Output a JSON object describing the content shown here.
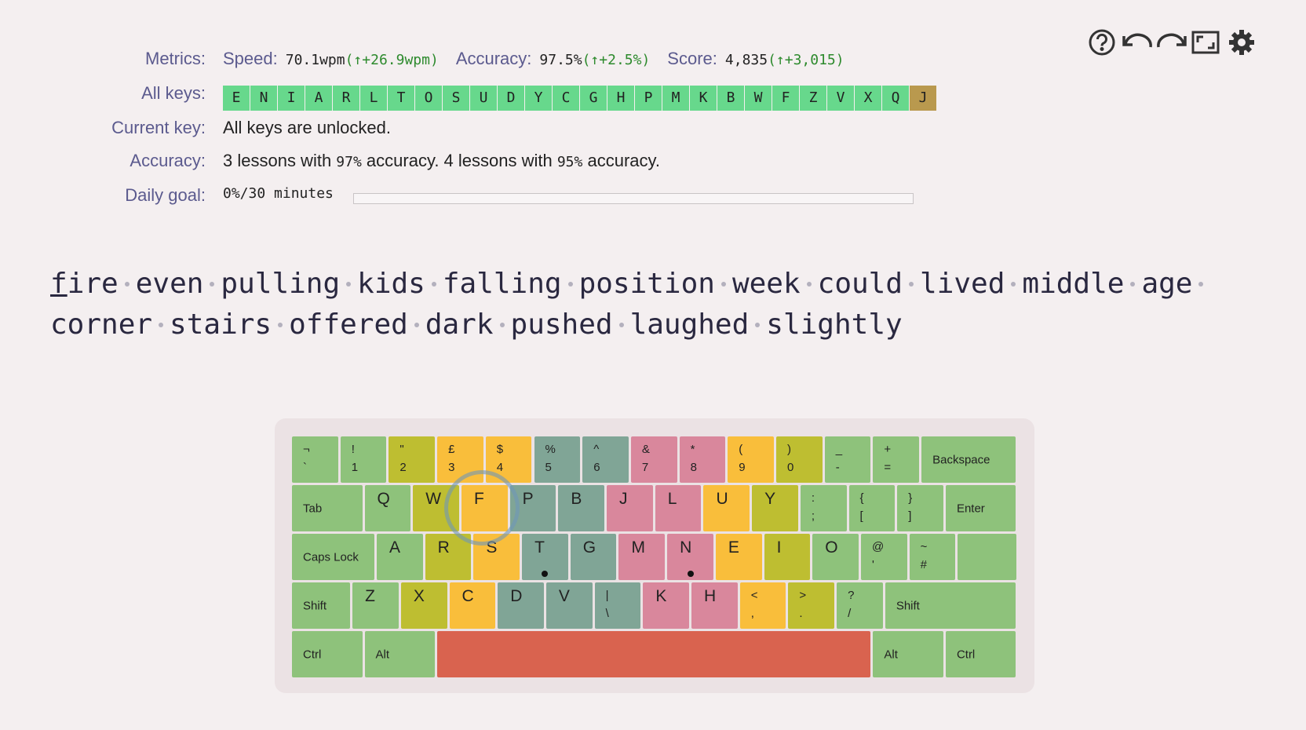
{
  "metrics": {
    "label": "Metrics:",
    "items": [
      {
        "label": "Speed:",
        "value": "70.1wpm",
        "delta": "(↑+26.9wpm)"
      },
      {
        "label": "Accuracy:",
        "value": "97.5%",
        "delta": "(↑+2.5%)"
      },
      {
        "label": "Score:",
        "value": "4,835",
        "delta": "(↑+3,015)"
      }
    ]
  },
  "all_keys": {
    "label": "All keys:",
    "keys": [
      {
        "key": "E",
        "color": "#67d88c"
      },
      {
        "key": "N",
        "color": "#67d88c"
      },
      {
        "key": "I",
        "color": "#67d88c"
      },
      {
        "key": "A",
        "color": "#67d88c"
      },
      {
        "key": "R",
        "color": "#67d88c"
      },
      {
        "key": "L",
        "color": "#67d88c"
      },
      {
        "key": "T",
        "color": "#67d88c"
      },
      {
        "key": "O",
        "color": "#67d88c"
      },
      {
        "key": "S",
        "color": "#67d88c"
      },
      {
        "key": "U",
        "color": "#67d88c"
      },
      {
        "key": "D",
        "color": "#67d88c"
      },
      {
        "key": "Y",
        "color": "#67d88c"
      },
      {
        "key": "C",
        "color": "#67d88c"
      },
      {
        "key": "G",
        "color": "#67d88c"
      },
      {
        "key": "H",
        "color": "#67d88c"
      },
      {
        "key": "P",
        "color": "#67d88c"
      },
      {
        "key": "M",
        "color": "#67d88c"
      },
      {
        "key": "K",
        "color": "#67d88c"
      },
      {
        "key": "B",
        "color": "#67d88c"
      },
      {
        "key": "W",
        "color": "#67d88c"
      },
      {
        "key": "F",
        "color": "#67d88c"
      },
      {
        "key": "Z",
        "color": "#67d88c"
      },
      {
        "key": "V",
        "color": "#67d88c"
      },
      {
        "key": "X",
        "color": "#67d88c"
      },
      {
        "key": "Q",
        "color": "#67d88c"
      },
      {
        "key": "J",
        "color": "#b9994e"
      }
    ]
  },
  "current_key": {
    "label": "Current key:",
    "text": "All keys are unlocked."
  },
  "accuracy": {
    "label": "Accuracy:",
    "parts": [
      {
        "text": "3 lessons with "
      },
      {
        "text": "97%",
        "mono": true
      },
      {
        "text": " accuracy. 4 lessons with "
      },
      {
        "text": "95%",
        "mono": true
      },
      {
        "text": " accuracy."
      }
    ]
  },
  "daily_goal": {
    "label": "Daily goal:",
    "value": "0%/30 minutes"
  },
  "lesson": {
    "words": [
      "fire",
      "even",
      "pulling",
      "kids",
      "falling",
      "position",
      "week",
      "could",
      "lived",
      "middle",
      "age",
      "corner",
      "stairs",
      "offered",
      "dark",
      "pushed",
      "laughed",
      "slightly"
    ]
  },
  "keyboard": {
    "rows": [
      [
        {
          "top": "¬",
          "bottom": "`",
          "color": "#8ec27b"
        },
        {
          "top": "!",
          "bottom": "1",
          "color": "#8ec27b"
        },
        {
          "top": "\"",
          "bottom": "2",
          "color": "#bebe31"
        },
        {
          "top": "£",
          "bottom": "3",
          "color": "#f9be3b"
        },
        {
          "top": "$",
          "bottom": "4",
          "color": "#f9be3b"
        },
        {
          "top": "%",
          "bottom": "5",
          "color": "#80a596"
        },
        {
          "top": "^",
          "bottom": "6",
          "color": "#80a596"
        },
        {
          "top": "&",
          "bottom": "7",
          "color": "#d9879c"
        },
        {
          "top": "*",
          "bottom": "8",
          "color": "#d9879c"
        },
        {
          "top": "(",
          "bottom": "9",
          "color": "#f9be3b"
        },
        {
          "top": ")",
          "bottom": "0",
          "color": "#bebe31"
        },
        {
          "top": "_",
          "bottom": "-",
          "color": "#8ec27b"
        },
        {
          "top": "+",
          "bottom": "=",
          "color": "#8ec27b"
        },
        {
          "name": "Backspace",
          "color": "#8ec27b"
        }
      ],
      [
        {
          "name": "Tab",
          "color": "#8ec27b"
        },
        {
          "label": "Q",
          "color": "#8ec27b"
        },
        {
          "label": "W",
          "color": "#bebe31"
        },
        {
          "label": "F",
          "color": "#f9be3b"
        },
        {
          "label": "P",
          "color": "#80a596"
        },
        {
          "label": "B",
          "color": "#80a596"
        },
        {
          "label": "J",
          "color": "#d9879c"
        },
        {
          "label": "L",
          "color": "#d9879c"
        },
        {
          "label": "U",
          "color": "#f9be3b"
        },
        {
          "label": "Y",
          "color": "#bebe31"
        },
        {
          "top": ":",
          "bottom": ";",
          "color": "#8ec27b"
        },
        {
          "top": "{",
          "bottom": "[",
          "color": "#8ec27b"
        },
        {
          "top": "}",
          "bottom": "]",
          "color": "#8ec27b"
        },
        {
          "name": "Enter",
          "color": "#8ec27b"
        }
      ],
      [
        {
          "name": "Caps Lock",
          "color": "#8ec27b"
        },
        {
          "label": "A",
          "color": "#8ec27b"
        },
        {
          "label": "R",
          "color": "#bebe31"
        },
        {
          "label": "S",
          "color": "#f9be3b"
        },
        {
          "label": "T",
          "color": "#80a596",
          "dot": true
        },
        {
          "label": "G",
          "color": "#80a596"
        },
        {
          "label": "M",
          "color": "#d9879c"
        },
        {
          "label": "N",
          "color": "#d9879c",
          "dot": true
        },
        {
          "label": "E",
          "color": "#f9be3b"
        },
        {
          "label": "I",
          "color": "#bebe31"
        },
        {
          "label": "O",
          "color": "#8ec27b"
        },
        {
          "top": "@",
          "bottom": "'",
          "color": "#8ec27b"
        },
        {
          "top": "~",
          "bottom": "#",
          "color": "#8ec27b"
        },
        {
          "color": "#8ec27b"
        }
      ],
      [
        {
          "name": "Shift",
          "color": "#8ec27b"
        },
        {
          "label": "Z",
          "color": "#8ec27b"
        },
        {
          "label": "X",
          "color": "#bebe31"
        },
        {
          "label": "C",
          "color": "#f9be3b"
        },
        {
          "label": "D",
          "color": "#80a596"
        },
        {
          "label": "V",
          "color": "#80a596"
        },
        {
          "top": "|",
          "bottom": "\\",
          "color": "#80a596"
        },
        {
          "label": "K",
          "color": "#d9879c"
        },
        {
          "label": "H",
          "color": "#d9879c"
        },
        {
          "top": "<",
          "bottom": ",",
          "color": "#f9be3b"
        },
        {
          "top": ">",
          "bottom": ".",
          "color": "#bebe31"
        },
        {
          "top": "?",
          "bottom": "/",
          "color": "#8ec27b"
        },
        {
          "name": "Shift",
          "color": "#8ec27b"
        }
      ],
      [
        {
          "name": "Ctrl",
          "color": "#8ec27b"
        },
        {
          "name": "Alt",
          "color": "#8ec27b"
        },
        {
          "color": "#d9634f"
        },
        {
          "name": "Alt",
          "color": "#8ec27b"
        },
        {
          "name": "Ctrl",
          "color": "#8ec27b"
        }
      ]
    ]
  }
}
